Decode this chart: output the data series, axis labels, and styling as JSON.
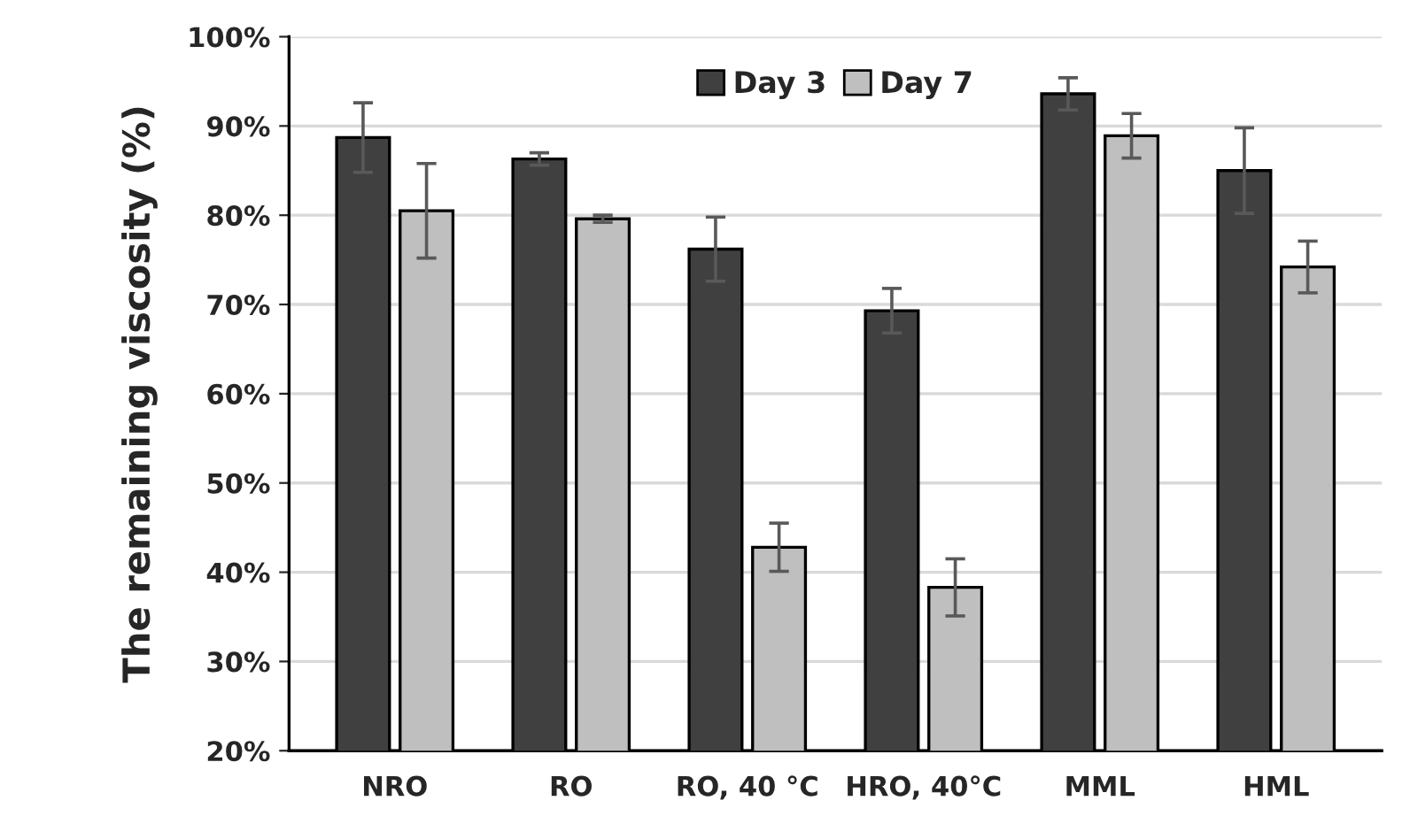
{
  "chart_data": {
    "type": "bar",
    "ylabel": "The remaining viscosity (%)",
    "categories": [
      "NRO",
      "RO",
      "RO, 40 °C",
      "HRO, 40°C",
      "MML",
      "HML"
    ],
    "series": [
      {
        "name": "Day 3",
        "color": "#404040",
        "values": [
          88.7,
          86.3,
          76.2,
          69.3,
          93.6,
          85.0
        ],
        "errors": [
          3.9,
          0.7,
          3.6,
          2.5,
          1.8,
          4.8
        ]
      },
      {
        "name": "Day 7",
        "color": "#bfbfbf",
        "values": [
          80.5,
          79.6,
          42.8,
          38.3,
          88.9,
          74.2
        ],
        "errors": [
          5.3,
          0.4,
          2.7,
          3.2,
          2.5,
          2.9
        ]
      }
    ],
    "ylim": [
      20,
      100
    ],
    "yticks": [
      {
        "value": 20,
        "label": "20%"
      },
      {
        "value": 30,
        "label": "30%"
      },
      {
        "value": 40,
        "label": "40%"
      },
      {
        "value": 50,
        "label": "50%"
      },
      {
        "value": 60,
        "label": "60%"
      },
      {
        "value": 70,
        "label": "70%"
      },
      {
        "value": 80,
        "label": "80%"
      },
      {
        "value": 90,
        "label": "90%"
      },
      {
        "value": 100,
        "label": "100%"
      }
    ],
    "grid": "y",
    "legend": "top"
  }
}
